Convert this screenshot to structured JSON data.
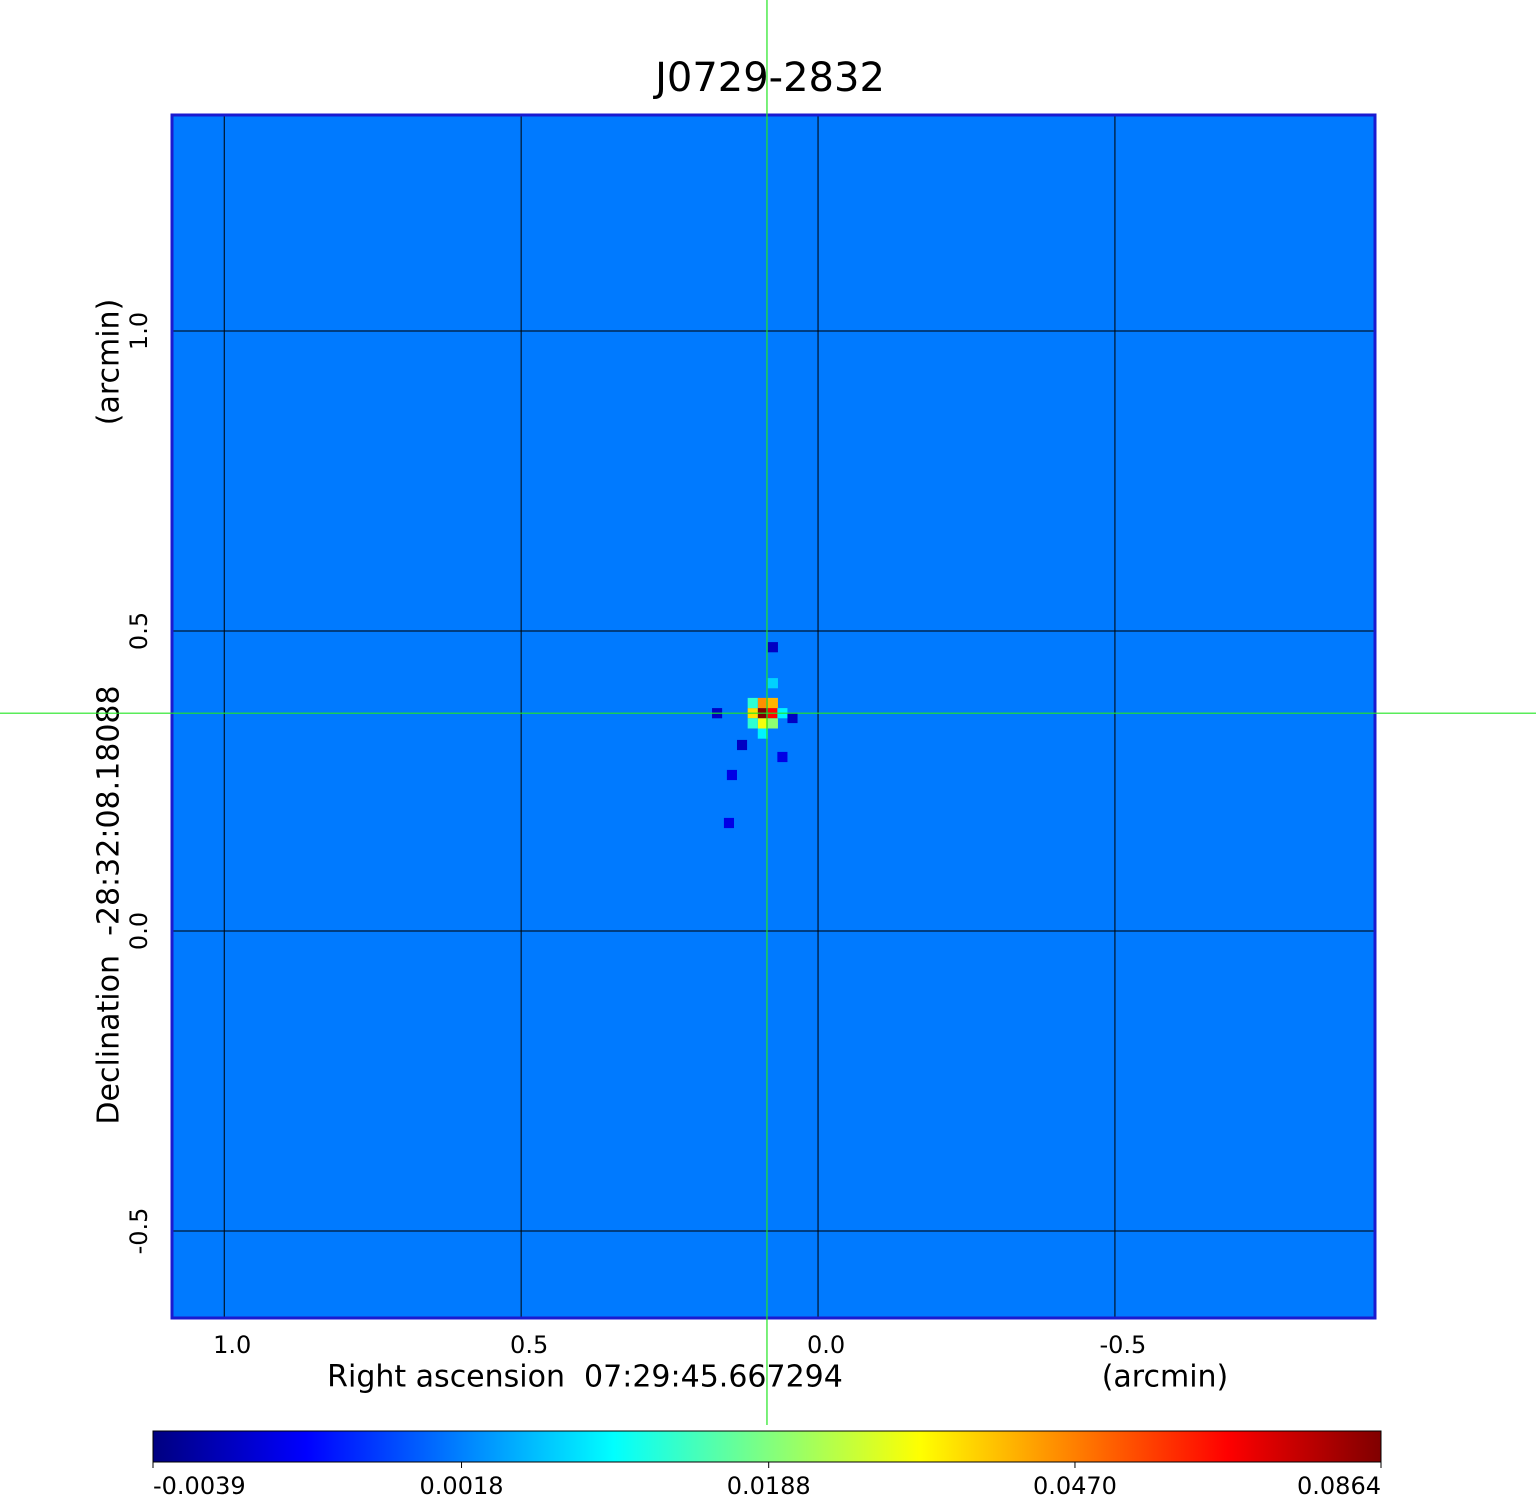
{
  "chart_data": {
    "type": "image",
    "title": "J0729-2832",
    "x_label": "Right ascension  07:29:45.667294",
    "x_unit": "(arcmin)",
    "y_label": "Declination  -28:32:08.18088",
    "y_unit": "(arcmin)",
    "xlim": [
      1.088,
      -0.938
    ],
    "ylim": [
      -0.645,
      1.36
    ],
    "xticks": [
      {
        "value": 1,
        "label": "1.0"
      },
      {
        "value": 0.5,
        "label": "0.5"
      },
      {
        "value": 0,
        "label": "0.0"
      },
      {
        "value": -0.5,
        "label": "-0.5"
      }
    ],
    "yticks": [
      {
        "value": 1,
        "label": "1.0"
      },
      {
        "value": 0.5,
        "label": "0.5"
      },
      {
        "value": 0,
        "label": "0.0"
      },
      {
        "value": -0.5,
        "label": "-0.5"
      }
    ],
    "grid": true,
    "colormap": "jet",
    "color_scale": "sqrt",
    "clim": [
      -0.0039,
      0.0864
    ],
    "colorbar_ticks": [
      {
        "value": -0.0039,
        "label": "-0.0039"
      },
      {
        "value": 0.0018,
        "label": "0.0018"
      },
      {
        "value": 0.0188,
        "label": "0.0188"
      },
      {
        "value": 0.047,
        "label": "0.0470"
      },
      {
        "value": 0.0864,
        "label": "0.0864"
      }
    ],
    "background": 0.0015,
    "pixels": [
      {
        "x": 0.093,
        "y": 0.363,
        "value": 0.0864
      },
      {
        "x": 0.076,
        "y": 0.363,
        "value": 0.065
      },
      {
        "x": 0.093,
        "y": 0.38,
        "value": 0.045
      },
      {
        "x": 0.076,
        "y": 0.38,
        "value": 0.04
      },
      {
        "x": 0.11,
        "y": 0.363,
        "value": 0.035
      },
      {
        "x": 0.093,
        "y": 0.346,
        "value": 0.03
      },
      {
        "x": 0.076,
        "y": 0.346,
        "value": 0.02
      },
      {
        "x": 0.11,
        "y": 0.38,
        "value": 0.012
      },
      {
        "x": 0.11,
        "y": 0.346,
        "value": 0.012
      },
      {
        "x": 0.093,
        "y": 0.329,
        "value": 0.008
      },
      {
        "x": 0.06,
        "y": 0.363,
        "value": 0.008
      },
      {
        "x": 0.076,
        "y": 0.413,
        "value": 0.006
      },
      {
        "x": 0.076,
        "y": 0.473,
        "value": -0.0035
      },
      {
        "x": 0.17,
        "y": 0.363,
        "value": -0.0035
      },
      {
        "x": 0.043,
        "y": 0.355,
        "value": -0.0035
      },
      {
        "x": 0.128,
        "y": 0.31,
        "value": -0.0035
      },
      {
        "x": 0.145,
        "y": 0.26,
        "value": -0.003
      },
      {
        "x": 0.06,
        "y": 0.29,
        "value": -0.003
      },
      {
        "x": 0.15,
        "y": 0.18,
        "value": -0.003
      }
    ],
    "crosshair": {
      "x": 0.086,
      "y": 0.363,
      "color": "#22e622"
    },
    "frame_color": "#1a1ad0",
    "title_color": "#1a1ad0"
  }
}
